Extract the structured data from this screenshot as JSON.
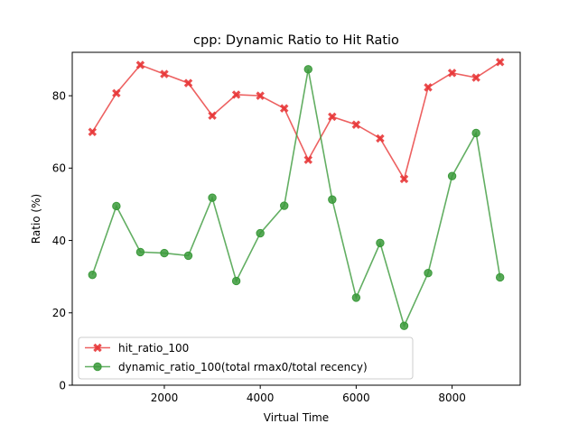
{
  "chart_data": {
    "type": "line",
    "title": "cpp: Dynamic Ratio to Hit Ratio",
    "xlabel": "Virtual Time",
    "ylabel": "Ratio (%)",
    "xlim": [
      80,
      9420
    ],
    "ylim": [
      0,
      92
    ],
    "xticks": [
      2000,
      4000,
      6000,
      8000
    ],
    "yticks": [
      0,
      20,
      40,
      60,
      80
    ],
    "xtick_labels": [
      "2000",
      "4000",
      "6000",
      "8000"
    ],
    "ytick_labels": [
      "0",
      "20",
      "40",
      "60",
      "80"
    ],
    "grid": false,
    "legend_position": "lower-left",
    "x": [
      500,
      1000,
      1500,
      2000,
      2500,
      3000,
      3500,
      4000,
      4500,
      5000,
      5500,
      6000,
      6500,
      7000,
      7500,
      8000,
      8500,
      9000
    ],
    "series": [
      {
        "name": "hit_ratio_100",
        "color": "#e8393a",
        "marker": "x",
        "values": [
          70.0,
          80.7,
          88.5,
          86.0,
          83.5,
          74.5,
          80.3,
          80.0,
          76.5,
          62.3,
          74.2,
          72.0,
          68.2,
          57.0,
          82.3,
          86.3,
          85.0,
          89.3
        ]
      },
      {
        "name": "dynamic_ratio_100(total rmax0/total recency)",
        "color": "#3b9a3b",
        "marker": "o",
        "values": [
          30.5,
          49.5,
          36.8,
          36.5,
          35.8,
          51.8,
          28.8,
          42.0,
          49.6,
          87.3,
          51.3,
          24.2,
          39.3,
          16.4,
          31.0,
          57.8,
          69.7,
          29.8
        ]
      }
    ]
  }
}
